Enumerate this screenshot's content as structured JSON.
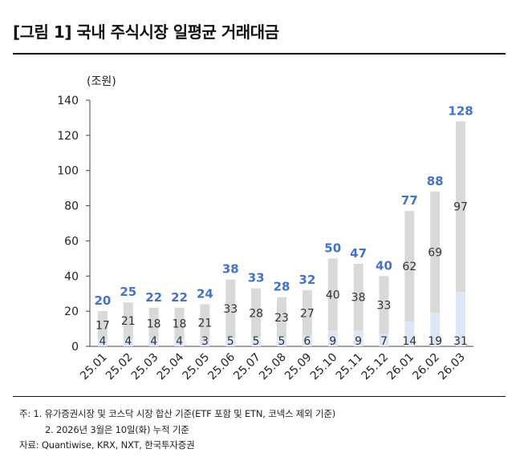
{
  "header": {
    "title": "[그림 1] 국내 주식시장 일평균 거래대금"
  },
  "chart_data": {
    "type": "bar",
    "stacked": true,
    "unit_label": "(조원)",
    "categories": [
      "25.01",
      "25.02",
      "25.03",
      "25.04",
      "25.05",
      "25.06",
      "25.07",
      "25.08",
      "25.09",
      "25.10",
      "25.11",
      "25.12",
      "26.01",
      "26.02",
      "26.03"
    ],
    "series": [
      {
        "name": "bottom",
        "color": "#dde6f7",
        "values": [
          4,
          4,
          4,
          4,
          3,
          5,
          5,
          5,
          6,
          9,
          9,
          7,
          14,
          19,
          31
        ]
      },
      {
        "name": "top",
        "color": "#d9d9d9",
        "values": [
          17,
          21,
          18,
          18,
          21,
          33,
          28,
          23,
          27,
          40,
          38,
          33,
          62,
          69,
          97
        ]
      }
    ],
    "totals": [
      20,
      25,
      22,
      22,
      24,
      38,
      33,
      28,
      32,
      50,
      47,
      40,
      77,
      88,
      128
    ],
    "total_label_color": "#4472c4",
    "y_ticks": [
      0,
      20,
      40,
      60,
      80,
      100,
      120,
      140
    ],
    "ylim": [
      0,
      140
    ]
  },
  "notes": {
    "line1": "주: 1. 유가증권시장 및 코스닥 시장 합산 기준(ETF 포함 및 ETN, 코넥스 제외 기준)",
    "line2": "2. 2026년 3월은 10일(화) 누적 기준",
    "source": "자료: Quantiwise, KRX, NXT, 한국투자증권"
  }
}
